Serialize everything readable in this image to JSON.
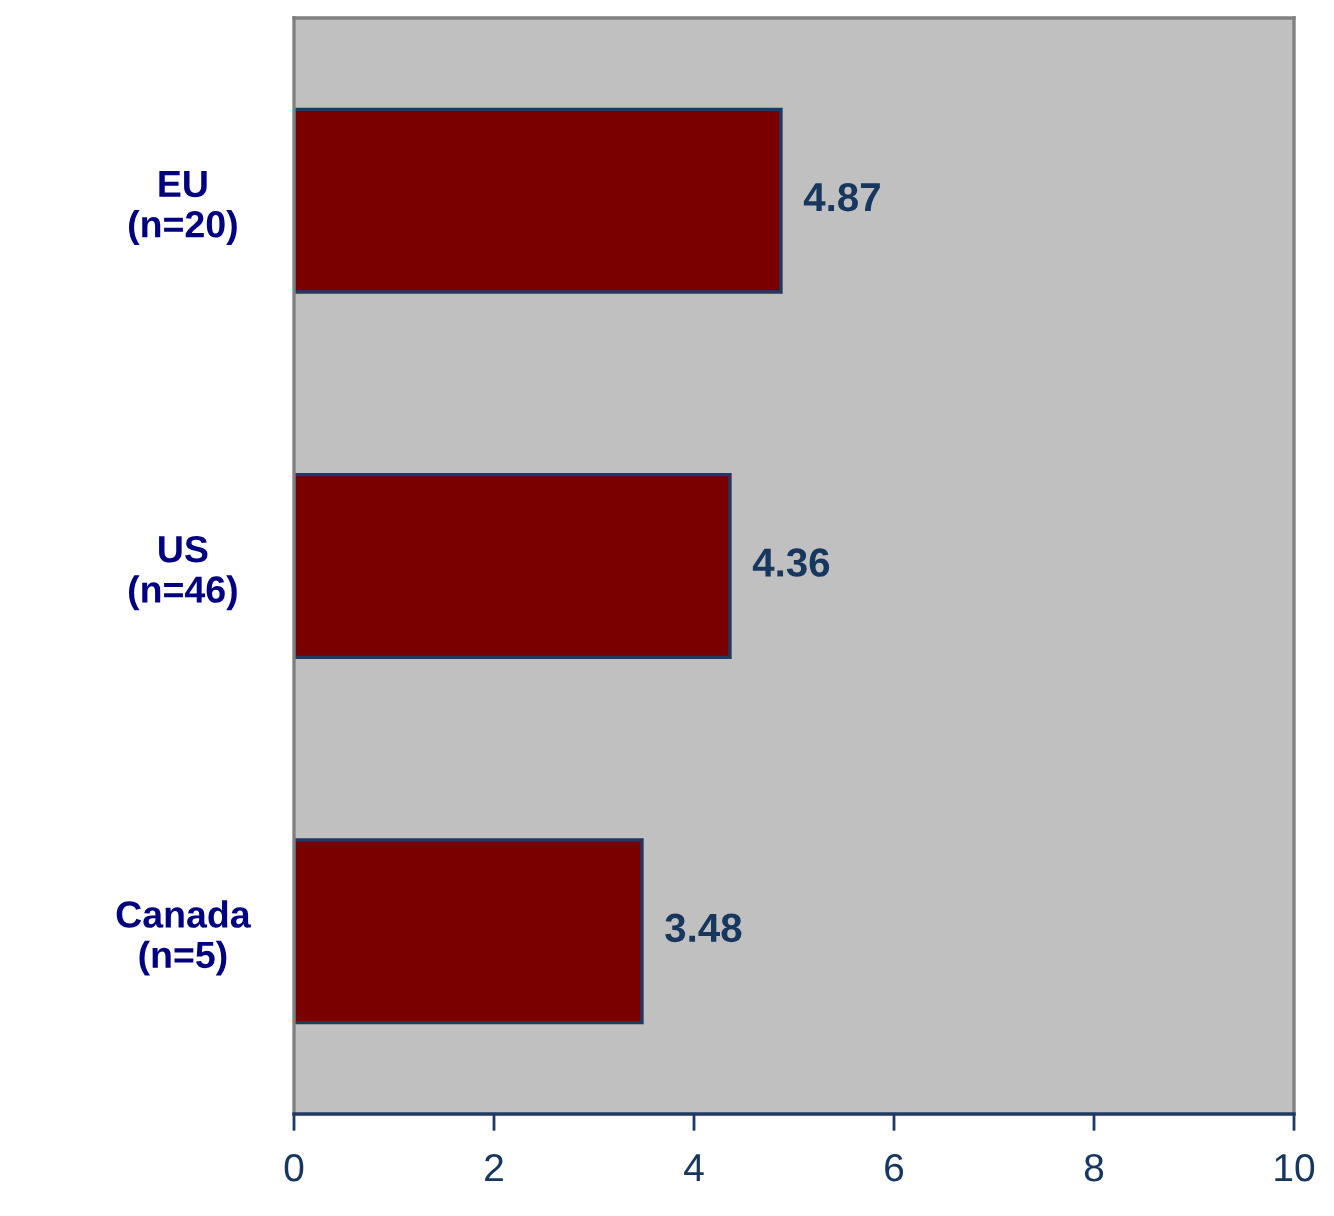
{
  "chart_data": {
    "type": "bar",
    "orientation": "horizontal",
    "categories": [
      "EU\n(n=20)",
      "US\n(n=46)",
      "Canada\n(n=5)"
    ],
    "values": [
      4.87,
      4.36,
      3.48
    ],
    "color": "#7a0000",
    "xlim": [
      0,
      10
    ],
    "xticks": [
      0,
      2,
      4,
      6,
      8,
      10
    ],
    "data_labels": true,
    "grid": false,
    "legend": false
  }
}
